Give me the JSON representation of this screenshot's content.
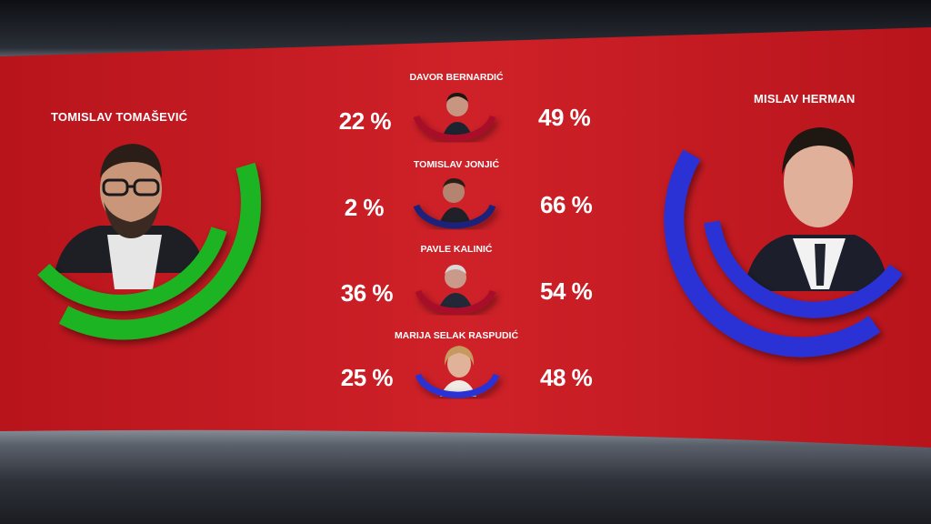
{
  "colors": {
    "screen_red": "#c81d24",
    "green": "#1fb423",
    "blue": "#2a31d6",
    "crimson": "#a8102a",
    "navy": "#1f247a"
  },
  "left_candidate": {
    "name": "TOMISLAV TOMAŠEVIĆ",
    "arc_color": "green"
  },
  "right_candidate": {
    "name": "MISLAV HERMAN",
    "arc_color": "blue"
  },
  "matchups": [
    {
      "name": "DAVOR BERNARDIĆ",
      "left_pct": "22 %",
      "right_pct": "49 %",
      "arc_color": "crimson"
    },
    {
      "name": "TOMISLAV JONJIĆ",
      "left_pct": "2 %",
      "right_pct": "66 %",
      "arc_color": "navy"
    },
    {
      "name": "PAVLE KALINIĆ",
      "left_pct": "36 %",
      "right_pct": "54 %",
      "arc_color": "crimson"
    },
    {
      "name": "MARIJA SELAK RASPUDIĆ",
      "left_pct": "25 %",
      "right_pct": "48 %",
      "arc_color": "blue"
    }
  ]
}
